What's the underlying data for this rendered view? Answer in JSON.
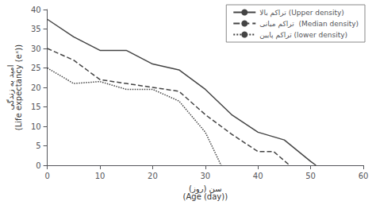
{
  "chart_data": {
    "type": "line",
    "xlabel": "سن (روز)\n(Age (day))",
    "ylabel": "امید به زندگی\n(Life expectancy (eˣ))",
    "xlim": [
      0,
      60
    ],
    "ylim": [
      0,
      40
    ],
    "xticks": [
      0,
      10,
      20,
      30,
      40,
      50,
      60
    ],
    "yticks": [
      0,
      5,
      10,
      15,
      20,
      25,
      30,
      35,
      40
    ],
    "grid": false,
    "legend": "upper right",
    "series": [
      {
        "name": "تراکم بالا (Upper density)",
        "color": "#444444",
        "line_style": "solid",
        "x": [
          0,
          5,
          10,
          15,
          20,
          25,
          30,
          35,
          40,
          45,
          50,
          51
        ],
        "values": [
          37.5,
          33,
          29.5,
          29.5,
          26,
          24.5,
          19.5,
          13,
          8.5,
          6.5,
          1,
          0
        ]
      },
      {
        "name": "تراکم میانی  (Median density)",
        "color": "#444444",
        "line_style": "dashed",
        "x": [
          0,
          5,
          10,
          15,
          20,
          25,
          30,
          35,
          40,
          43,
          46
        ],
        "values": [
          30,
          27,
          22,
          21,
          20,
          19,
          13,
          8,
          3.5,
          3.5,
          0
        ]
      },
      {
        "name": "تراکم پایین (lower density)",
        "color": "#444444",
        "line_style": "dotted",
        "x": [
          0,
          5,
          10,
          15,
          20,
          25,
          30,
          33
        ],
        "values": [
          25,
          21,
          21.5,
          19.5,
          19.5,
          16.5,
          8.5,
          0
        ]
      }
    ]
  }
}
